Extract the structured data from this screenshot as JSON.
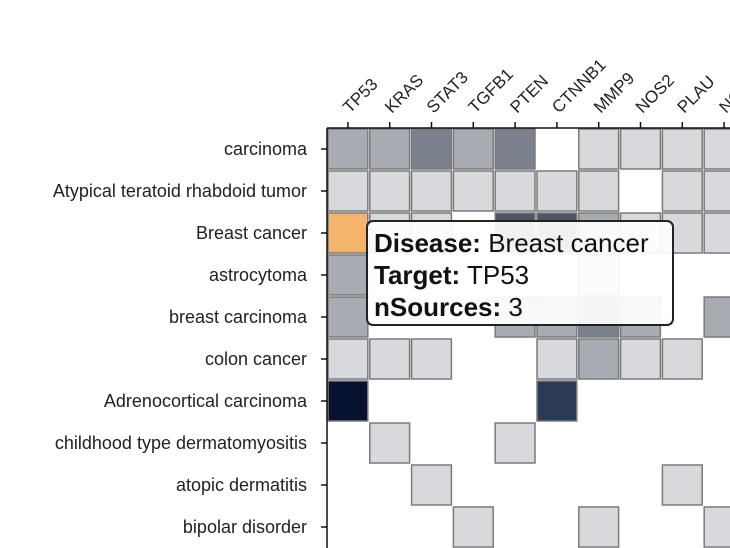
{
  "chart_data": {
    "type": "heatmap",
    "columns": [
      "TP53",
      "KRAS",
      "STAT3",
      "TGFB1",
      "PTEN",
      "CTNNB1",
      "MMP9",
      "NOS2",
      "PLAU",
      "NC"
    ],
    "rows": [
      "carcinoma",
      "Atypical teratoid rhabdoid tumor",
      "Breast cancer",
      "astrocytoma",
      "breast carcinoma",
      "colon cancer",
      "Adrenocortical carcinoma",
      "childhood type dermatomyositis",
      "atopic dermatitis",
      "bipolar disorder"
    ],
    "cells": [
      {
        "row": 0,
        "col": 0,
        "color": "#a7acb3"
      },
      {
        "row": 0,
        "col": 1,
        "color": "#a7acb3"
      },
      {
        "row": 0,
        "col": 2,
        "color": "#7b828d"
      },
      {
        "row": 0,
        "col": 3,
        "color": "#a7acb3"
      },
      {
        "row": 0,
        "col": 4,
        "color": "#7b828d"
      },
      {
        "row": 0,
        "col": 6,
        "color": "#d7d9dd"
      },
      {
        "row": 0,
        "col": 7,
        "color": "#d7d9dd"
      },
      {
        "row": 0,
        "col": 8,
        "color": "#d7d9dd"
      },
      {
        "row": 0,
        "col": 9,
        "color": "#d7d9dd"
      },
      {
        "row": 1,
        "col": 0,
        "color": "#d7d9dd"
      },
      {
        "row": 1,
        "col": 1,
        "color": "#d7d9dd"
      },
      {
        "row": 1,
        "col": 2,
        "color": "#d7d9dd"
      },
      {
        "row": 1,
        "col": 3,
        "color": "#d7d9dd"
      },
      {
        "row": 1,
        "col": 4,
        "color": "#d7d9dd"
      },
      {
        "row": 1,
        "col": 5,
        "color": "#d7d9dd"
      },
      {
        "row": 1,
        "col": 6,
        "color": "#d7d9dd"
      },
      {
        "row": 1,
        "col": 8,
        "color": "#d7d9dd"
      },
      {
        "row": 1,
        "col": 9,
        "color": "#d7d9dd"
      },
      {
        "row": 2,
        "col": 0,
        "color": "#f4b46c"
      },
      {
        "row": 2,
        "col": 1,
        "color": "#d7d9dd"
      },
      {
        "row": 2,
        "col": 2,
        "color": "#d7d9dd"
      },
      {
        "row": 2,
        "col": 4,
        "color": "#4b5563"
      },
      {
        "row": 2,
        "col": 5,
        "color": "#4b5563"
      },
      {
        "row": 2,
        "col": 6,
        "color": "#a7acb3"
      },
      {
        "row": 2,
        "col": 7,
        "color": "#d7d9dd"
      },
      {
        "row": 2,
        "col": 8,
        "color": "#d7d9dd"
      },
      {
        "row": 2,
        "col": 9,
        "color": "#d7d9dd"
      },
      {
        "row": 3,
        "col": 0,
        "color": "#a7acb3"
      },
      {
        "row": 3,
        "col": 6,
        "color": "#d7d9dd"
      },
      {
        "row": 4,
        "col": 0,
        "color": "#a7acb3"
      },
      {
        "row": 4,
        "col": 4,
        "color": "#a7acb3"
      },
      {
        "row": 4,
        "col": 5,
        "color": "#a7acb3"
      },
      {
        "row": 4,
        "col": 6,
        "color": "#7b828d"
      },
      {
        "row": 4,
        "col": 7,
        "color": "#a7acb3"
      },
      {
        "row": 4,
        "col": 9,
        "color": "#a7acb3"
      },
      {
        "row": 5,
        "col": 0,
        "color": "#d7d9dd"
      },
      {
        "row": 5,
        "col": 1,
        "color": "#d7d9dd"
      },
      {
        "row": 5,
        "col": 2,
        "color": "#d7d9dd"
      },
      {
        "row": 5,
        "col": 5,
        "color": "#d7d9dd"
      },
      {
        "row": 5,
        "col": 6,
        "color": "#a7acb3"
      },
      {
        "row": 5,
        "col": 7,
        "color": "#d7d9dd"
      },
      {
        "row": 5,
        "col": 8,
        "color": "#d7d9dd"
      },
      {
        "row": 6,
        "col": 0,
        "color": "#061230"
      },
      {
        "row": 6,
        "col": 5,
        "color": "#2b3a55"
      },
      {
        "row": 7,
        "col": 1,
        "color": "#d7d9dd"
      },
      {
        "row": 7,
        "col": 4,
        "color": "#d7d9dd"
      },
      {
        "row": 8,
        "col": 2,
        "color": "#d7d9dd"
      },
      {
        "row": 8,
        "col": 8,
        "color": "#d7d9dd"
      },
      {
        "row": 9,
        "col": 3,
        "color": "#d7d9dd"
      },
      {
        "row": 9,
        "col": 6,
        "color": "#d7d9dd"
      },
      {
        "row": 9,
        "col": 9,
        "color": "#d7d9dd"
      }
    ],
    "tooltip": {
      "disease_key": "Disease:",
      "disease_value": "Breast cancer",
      "target_key": "Target:",
      "target_value": "TP53",
      "nsources_key": "nSources:",
      "nsources_value": "3"
    }
  }
}
